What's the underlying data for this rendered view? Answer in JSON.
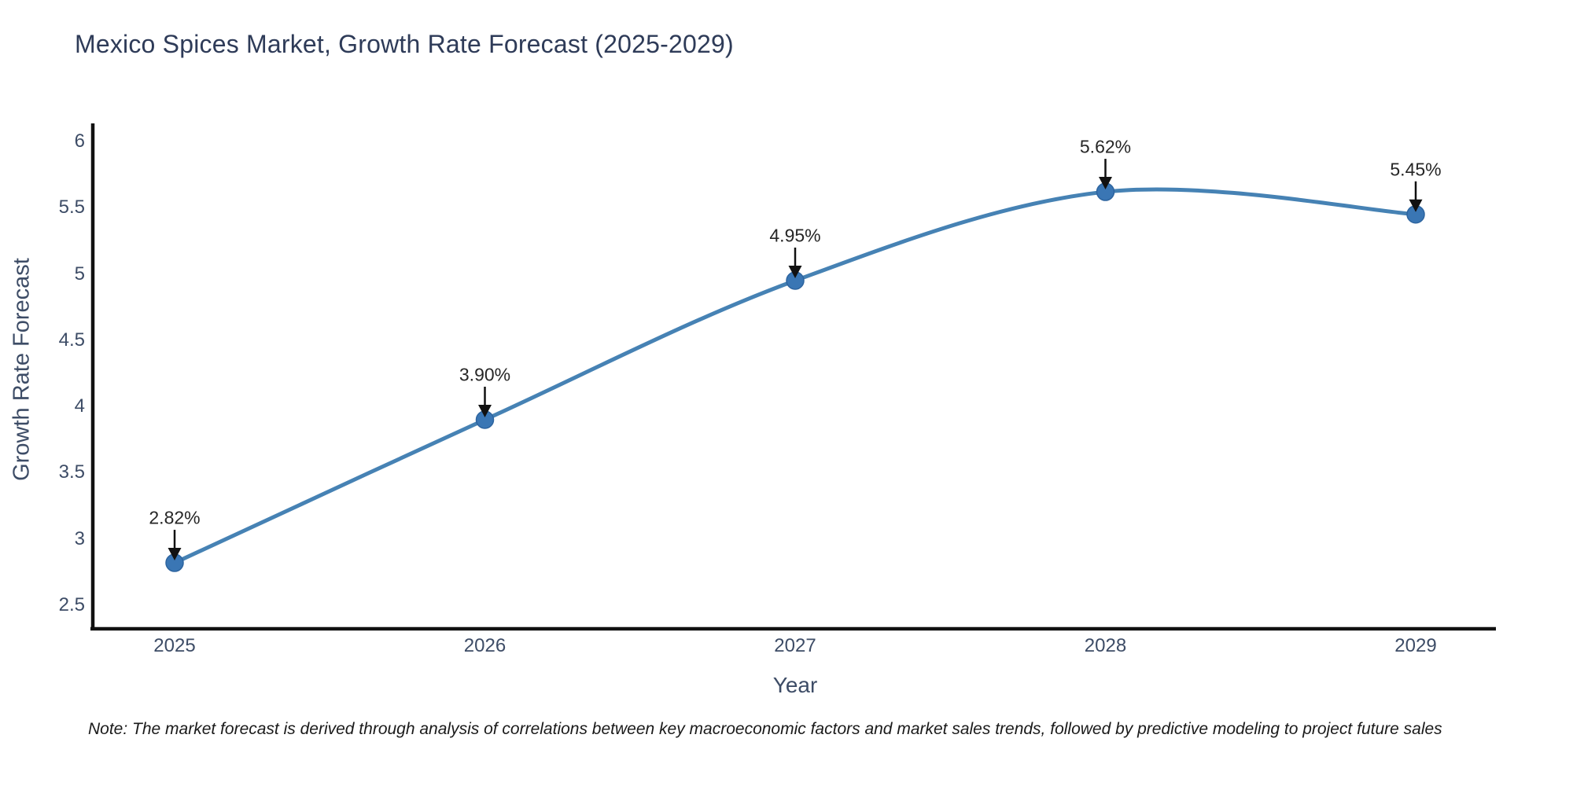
{
  "chart_data": {
    "type": "line",
    "title": "Mexico Spices Market, Growth Rate Forecast (2025-2029)",
    "xlabel": "Year",
    "ylabel": "Growth Rate Forecast",
    "categories": [
      "2025",
      "2026",
      "2027",
      "2028",
      "2029"
    ],
    "values": [
      2.82,
      3.9,
      4.95,
      5.62,
      5.45
    ],
    "point_labels": [
      "2.82%",
      "3.90%",
      "4.95%",
      "5.62%",
      "5.45%"
    ],
    "x_ticks": [
      "2025",
      "2026",
      "2027",
      "2028",
      "2029"
    ],
    "y_ticks": [
      "2.5",
      "3",
      "3.5",
      "4",
      "4.5",
      "5",
      "5.5",
      "6"
    ],
    "ylim": [
      2.5,
      6
    ],
    "grid": false,
    "legend": "none",
    "line_shape": "spline",
    "line_color": "#4682b4",
    "marker_color": "#3a76b4",
    "marker_edge_color": "#2d649f",
    "arrow_color": "#111111",
    "axis_color": "#111111"
  },
  "note": "Note: The market forecast is derived through analysis of correlations between key macroeconomic factors and market sales trends, followed by predictive modeling to project future sales"
}
